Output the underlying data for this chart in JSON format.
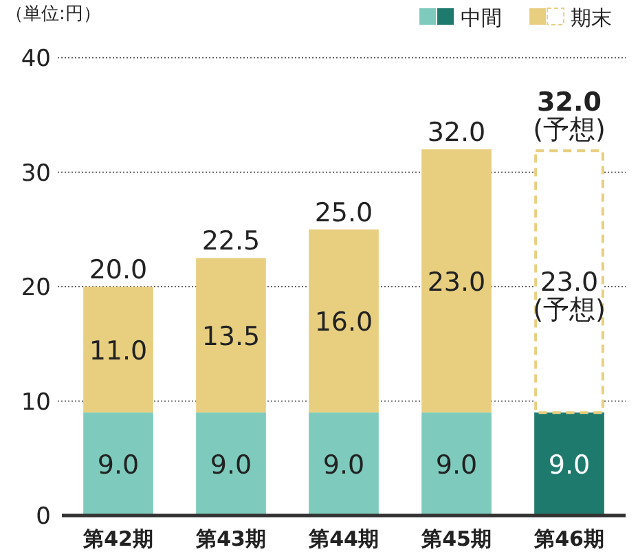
{
  "chart_data": {
    "type": "bar",
    "stacked": true,
    "ylabel": "（単位:円）",
    "categories": [
      "第42期",
      "第43期",
      "第44期",
      "第45期",
      "第46期"
    ],
    "series": [
      {
        "name": "中間",
        "colors": [
          "#7ecbbd",
          "#7ecbbd",
          "#7ecbbd",
          "#7ecbbd",
          "#1f7a6e"
        ],
        "values": [
          9.0,
          9.0,
          9.0,
          9.0,
          9.0
        ],
        "value_labels": [
          "9.0",
          "9.0",
          "9.0",
          "9.0",
          "9.0"
        ]
      },
      {
        "name": "期末",
        "color": "#e8cf80",
        "colors": [
          "#e8cf80",
          "#e8cf80",
          "#e8cf80",
          "#e8cf80",
          "#ffffff"
        ],
        "values": [
          11.0,
          13.5,
          16.0,
          23.0,
          23.0
        ],
        "value_labels": [
          "11.0",
          "13.5",
          "16.0",
          "23.0",
          "23.0\n(予想)"
        ]
      }
    ],
    "totals": [
      "20.0",
      "22.5",
      "25.0",
      "32.0",
      "32.0\n(予想)"
    ],
    "ylim": [
      0,
      40
    ],
    "yticks": [
      0,
      10,
      20,
      30,
      40
    ],
    "grid": "y",
    "legend": "top right"
  }
}
